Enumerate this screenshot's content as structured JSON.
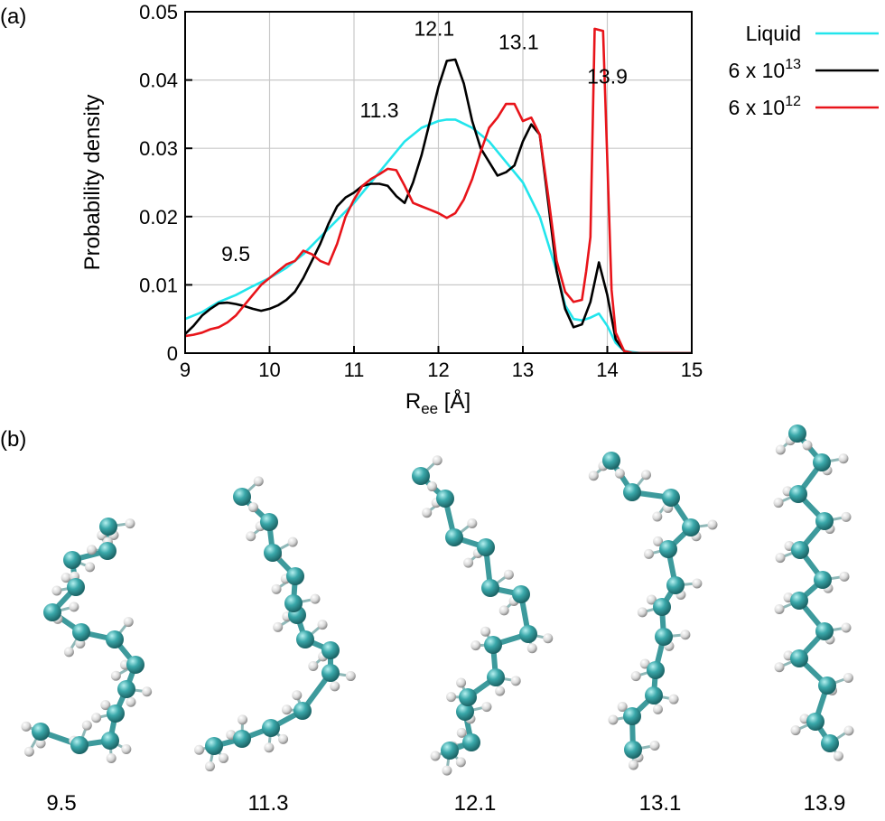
{
  "panel_a_label": "(a)",
  "panel_b_label": "(b)",
  "chart_data": {
    "type": "line",
    "title": "",
    "xlabel": {
      "main": "R",
      "sub": "ee",
      "unit": " [Å]"
    },
    "ylabel": "Probability density",
    "xlim": [
      9,
      15
    ],
    "ylim": [
      0,
      0.05
    ],
    "xticks": [
      9,
      10,
      11,
      12,
      13,
      14,
      15
    ],
    "xtick_labels": [
      "9",
      "10",
      "11",
      "12",
      "13",
      "14",
      "15"
    ],
    "yticks": [
      0,
      0.01,
      0.02,
      0.03,
      0.04,
      0.05
    ],
    "ytick_labels": [
      "0",
      "0.01",
      "0.02",
      "0.03",
      "0.04",
      "0.05"
    ],
    "grid": true,
    "legend_placement": "outside-right",
    "legend": [
      {
        "text": "Liquid",
        "sup": "",
        "color": "#22e5ec"
      },
      {
        "text": "6 x 10",
        "sup": "13",
        "color": "#000000"
      },
      {
        "text": "6 x 10",
        "sup": "12",
        "color": "#e8141a"
      }
    ],
    "annotations": [
      {
        "text": "9.5",
        "x": 9.6,
        "y": 0.0135
      },
      {
        "text": "11.3",
        "x": 11.3,
        "y": 0.0345
      },
      {
        "text": "12.1",
        "x": 11.95,
        "y": 0.0465
      },
      {
        "text": "13.1",
        "x": 12.95,
        "y": 0.0445
      },
      {
        "text": "13.9",
        "x": 14.0,
        "y": 0.0395
      }
    ],
    "series": [
      {
        "name": "Liquid",
        "color": "#22e5ec",
        "x": [
          9.0,
          9.2,
          9.4,
          9.6,
          9.8,
          10.0,
          10.2,
          10.4,
          10.6,
          10.8,
          11.0,
          11.2,
          11.4,
          11.6,
          11.8,
          12.0,
          12.1,
          12.2,
          12.4,
          12.6,
          12.8,
          13.0,
          13.2,
          13.4,
          13.5,
          13.6,
          13.7,
          13.8,
          13.9,
          14.0,
          14.1,
          14.2,
          14.4,
          15.0
        ],
        "y": [
          0.005,
          0.006,
          0.0075,
          0.0085,
          0.0098,
          0.011,
          0.0125,
          0.0145,
          0.017,
          0.0195,
          0.022,
          0.025,
          0.028,
          0.031,
          0.033,
          0.034,
          0.0342,
          0.0342,
          0.033,
          0.031,
          0.028,
          0.025,
          0.02,
          0.012,
          0.007,
          0.005,
          0.0048,
          0.0052,
          0.0058,
          0.004,
          0.0015,
          0.0003,
          0.0,
          0.0
        ]
      },
      {
        "name": "6 x 10^13",
        "color": "#000000",
        "x": [
          9.0,
          9.1,
          9.2,
          9.3,
          9.4,
          9.5,
          9.6,
          9.7,
          9.8,
          9.9,
          10.0,
          10.1,
          10.2,
          10.3,
          10.4,
          10.5,
          10.6,
          10.7,
          10.8,
          10.9,
          11.0,
          11.1,
          11.2,
          11.3,
          11.4,
          11.5,
          11.6,
          11.7,
          11.8,
          11.9,
          12.0,
          12.1,
          12.2,
          12.3,
          12.4,
          12.5,
          12.6,
          12.7,
          12.8,
          12.9,
          13.0,
          13.1,
          13.2,
          13.3,
          13.4,
          13.5,
          13.6,
          13.7,
          13.8,
          13.9,
          14.0,
          14.1,
          14.2,
          14.3,
          14.5,
          15.0
        ],
        "y": [
          0.0028,
          0.004,
          0.0055,
          0.0065,
          0.0073,
          0.0074,
          0.0072,
          0.0069,
          0.0065,
          0.0062,
          0.0065,
          0.007,
          0.0078,
          0.009,
          0.011,
          0.0135,
          0.016,
          0.019,
          0.0215,
          0.0228,
          0.0235,
          0.0245,
          0.0248,
          0.0248,
          0.0245,
          0.023,
          0.022,
          0.025,
          0.029,
          0.034,
          0.039,
          0.0428,
          0.043,
          0.0395,
          0.034,
          0.03,
          0.028,
          0.026,
          0.0265,
          0.0275,
          0.031,
          0.0335,
          0.032,
          0.022,
          0.012,
          0.0065,
          0.0038,
          0.0042,
          0.0075,
          0.0133,
          0.0085,
          0.002,
          0.0003,
          0.0,
          0.0,
          0.0
        ]
      },
      {
        "name": "6 x 10^12",
        "color": "#e8141a",
        "x": [
          9.0,
          9.1,
          9.2,
          9.3,
          9.4,
          9.5,
          9.6,
          9.7,
          9.8,
          9.9,
          10.0,
          10.1,
          10.2,
          10.3,
          10.4,
          10.5,
          10.6,
          10.7,
          10.8,
          10.9,
          11.0,
          11.1,
          11.2,
          11.3,
          11.4,
          11.5,
          11.6,
          11.7,
          11.8,
          11.9,
          12.0,
          12.1,
          12.2,
          12.3,
          12.4,
          12.5,
          12.6,
          12.7,
          12.8,
          12.9,
          13.0,
          13.1,
          13.2,
          13.3,
          13.4,
          13.5,
          13.6,
          13.7,
          13.75,
          13.8,
          13.85,
          13.95,
          14.05,
          14.1,
          14.2,
          14.3,
          15.0
        ],
        "y": [
          0.0025,
          0.0027,
          0.003,
          0.0035,
          0.0038,
          0.0045,
          0.0055,
          0.007,
          0.0085,
          0.01,
          0.011,
          0.012,
          0.013,
          0.0135,
          0.015,
          0.0145,
          0.0135,
          0.013,
          0.016,
          0.02,
          0.0225,
          0.0245,
          0.0255,
          0.0262,
          0.027,
          0.0268,
          0.0245,
          0.022,
          0.0215,
          0.021,
          0.0205,
          0.0198,
          0.0205,
          0.0225,
          0.0255,
          0.0295,
          0.033,
          0.0345,
          0.0365,
          0.0365,
          0.034,
          0.0345,
          0.032,
          0.023,
          0.0135,
          0.009,
          0.0075,
          0.0078,
          0.012,
          0.017,
          0.0475,
          0.0472,
          0.0093,
          0.003,
          0.0003,
          0.0,
          0.0
        ]
      }
    ]
  },
  "molecules": [
    {
      "label": "9.5"
    },
    {
      "label": "11.3"
    },
    {
      "label": "12.1"
    },
    {
      "label": "13.1"
    },
    {
      "label": "13.9"
    }
  ],
  "colors": {
    "carbon": "#2d8f92",
    "carbon_highlight": "#9be0e0",
    "bond": "#3d9a9c",
    "hydrogen": "#dcdcdc",
    "grid": "#c8c8c8"
  }
}
